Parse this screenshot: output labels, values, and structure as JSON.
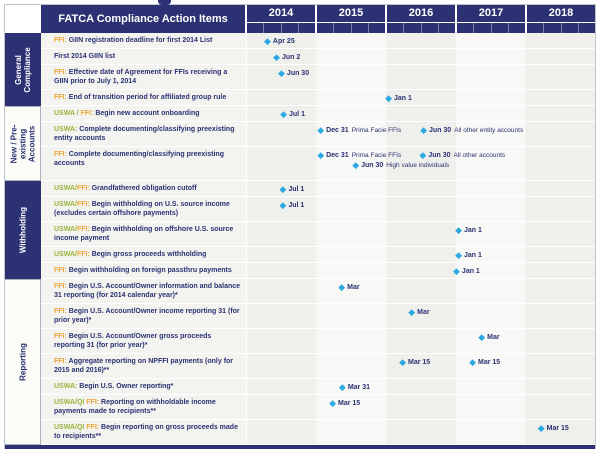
{
  "colors": {
    "navy": "#2b3173",
    "cyan_diamond": "#2ca9e0",
    "ffi_orange": "#eda437",
    "uswa_green": "#98b43c",
    "row_grey": "#efefeb"
  },
  "chart_data": {
    "type": "timeline",
    "title": "FATCA Compliance Action Items",
    "x_axis": {
      "years": [
        "2014",
        "2015",
        "2016",
        "2017",
        "2018"
      ],
      "ticks_per_year": 4
    },
    "legend": {
      "marker": "diamond",
      "marker_meaning": "milestone date"
    },
    "sections": [
      {
        "label": "General Compliance",
        "label_display": "General\nCompliance",
        "theme": "dark",
        "rows": [
          {
            "prefix": [
              {
                "text": "FFI:",
                "color": "orange"
              }
            ],
            "text": "GIIN registration deadline for first 2014 List",
            "lines": 1,
            "milestones": [
              {
                "date": "Apr 25",
                "year": 2014,
                "t": 0.3
              }
            ]
          },
          {
            "prefix": [],
            "text": "First 2014 GIIN list",
            "lines": 1,
            "milestones": [
              {
                "date": "Jun 2",
                "year": 2014,
                "t": 0.43
              }
            ]
          },
          {
            "prefix": [
              {
                "text": "FFI:",
                "color": "orange"
              }
            ],
            "text": "Effective date of Agreement for FFIs receiving a GIIN prior to July 1, 2014",
            "lines": 2,
            "milestones": [
              {
                "date": "Jun 30",
                "year": 2014,
                "t": 0.5
              }
            ]
          },
          {
            "prefix": [
              {
                "text": "FFI:",
                "color": "orange"
              }
            ],
            "text": "End of transition period for affiliated group rule",
            "lines": 1,
            "milestones": [
              {
                "date": "Jan 1",
                "year": 2016,
                "t": 2.03
              }
            ]
          }
        ]
      },
      {
        "label": "New / Pre-existing Accounts",
        "label_display": "New / Pre-\nexisting\nAccounts",
        "theme": "light",
        "rows": [
          {
            "prefix": [
              {
                "text": "USWA / ",
                "color": "green"
              },
              {
                "text": "FFI:",
                "color": "orange"
              }
            ],
            "text": "Begin new account onboarding",
            "lines": 1,
            "milestones": [
              {
                "date": "Jul 1",
                "year": 2014,
                "t": 0.53
              }
            ]
          },
          {
            "prefix": [
              {
                "text": "USWA:",
                "color": "green"
              }
            ],
            "text": "Complete documenting/classifying preexisting entity accounts",
            "lines": 2,
            "milestones": [
              {
                "date": "Dec 31",
                "year": 2014,
                "t": 1.06,
                "note": "Prima Facie FFIs"
              },
              {
                "date": "Jun 30",
                "year": 2016,
                "t": 2.53,
                "note": "All other entity accounts"
              }
            ]
          },
          {
            "prefix": [
              {
                "text": "FFI:",
                "color": "orange"
              }
            ],
            "text": "Complete documenting/classifying preexisting accounts",
            "lines": 2,
            "milestones": [
              {
                "date": "Dec 31",
                "year": 2014,
                "t": 1.06,
                "note": "Prima Facie FFIs"
              },
              {
                "date": "Jun 30",
                "year": 2016,
                "t": 2.52,
                "note": "All other accounts"
              },
              {
                "date": "Jun 30",
                "year": 2015,
                "t": 1.56,
                "note": "High value individuals",
                "line": 1
              }
            ]
          }
        ]
      },
      {
        "label": "Withholding",
        "label_display": "Withholding",
        "theme": "dark",
        "rows": [
          {
            "prefix": [
              {
                "text": "USWA/",
                "color": "green"
              },
              {
                "text": "FFI:",
                "color": "orange"
              }
            ],
            "text": "Grandfathered obligation cutoff",
            "lines": 1,
            "milestones": [
              {
                "date": "Jul 1",
                "year": 2014,
                "t": 0.52
              }
            ]
          },
          {
            "prefix": [
              {
                "text": "USWA/",
                "color": "green"
              },
              {
                "text": "FFI:",
                "color": "orange"
              }
            ],
            "text": "Begin withholding on U.S. source income (excludes certain offshore payments)",
            "lines": 2,
            "milestones": [
              {
                "date": "Jul 1",
                "year": 2014,
                "t": 0.52
              }
            ]
          },
          {
            "prefix": [
              {
                "text": "USWA/",
                "color": "green"
              },
              {
                "text": "FFI:",
                "color": "orange"
              }
            ],
            "text": "Begin withholding on offshore U.S. source income payment",
            "lines": 2,
            "milestones": [
              {
                "date": "Jan 1",
                "year": 2017,
                "t": 3.03
              }
            ]
          },
          {
            "prefix": [
              {
                "text": "USWA/",
                "color": "green"
              },
              {
                "text": "FFI:",
                "color": "orange"
              }
            ],
            "text": "Begin gross proceeds withholding",
            "lines": 1,
            "milestones": [
              {
                "date": "Jan 1",
                "year": 2017,
                "t": 3.03
              }
            ]
          },
          {
            "prefix": [
              {
                "text": "FFI:",
                "color": "orange"
              }
            ],
            "text": "Begin withholding on foreign passthru payments",
            "lines": 1,
            "milestones": [
              {
                "date": "Jan 1",
                "year": 2017,
                "t": 3.0
              }
            ]
          }
        ]
      },
      {
        "label": "Reporting",
        "label_display": "Reporting",
        "theme": "light",
        "rows": [
          {
            "prefix": [
              {
                "text": "FFI:",
                "color": "orange"
              }
            ],
            "text": "Begin U.S. Account/Owner information and balance 31 reporting (for 2014 calendar year)*",
            "lines": 2,
            "milestones": [
              {
                "date": "Mar",
                "year": 2015,
                "t": 1.36
              }
            ]
          },
          {
            "prefix": [
              {
                "text": "FFI:",
                "color": "orange"
              }
            ],
            "text": "Begin U.S. Account/Owner income reporting 31 (for prior year)*",
            "lines": 2,
            "milestones": [
              {
                "date": "Mar",
                "year": 2016,
                "t": 2.36
              }
            ]
          },
          {
            "prefix": [
              {
                "text": "FFI:",
                "color": "orange"
              }
            ],
            "text": "Begin U.S. Account/Owner gross proceeds reporting 31 (for prior year)*",
            "lines": 2,
            "milestones": [
              {
                "date": "Mar",
                "year": 2017,
                "t": 3.36
              }
            ]
          },
          {
            "prefix": [
              {
                "text": "FFI:",
                "color": "orange"
              }
            ],
            "text": "Aggregate reporting on NPFFI payments (only for 2015 and 2016)**",
            "lines": 2,
            "milestones": [
              {
                "date": "Mar 15",
                "year": 2016,
                "t": 2.23
              },
              {
                "date": "Mar 15",
                "year": 2017,
                "t": 3.23
              }
            ]
          },
          {
            "prefix": [
              {
                "text": "USWA:",
                "color": "green"
              }
            ],
            "text": "Begin U.S. Owner reporting*",
            "lines": 1,
            "milestones": [
              {
                "date": "Mar 31",
                "year": 2015,
                "t": 1.37
              }
            ]
          },
          {
            "prefix": [
              {
                "text": "USWA/QI ",
                "color": "green"
              },
              {
                "text": "FFI:",
                "color": "orange"
              }
            ],
            "text": "Reporting on withholdable income payments made to recipients**",
            "lines": 2,
            "milestones": [
              {
                "date": "Mar 15",
                "year": 2015,
                "t": 1.23
              }
            ]
          },
          {
            "prefix": [
              {
                "text": "USWA/QI ",
                "color": "green"
              },
              {
                "text": "FFI:",
                "color": "orange"
              }
            ],
            "text": "Begin reporting on gross proceeds made to recipients**",
            "lines": 2,
            "milestones": [
              {
                "date": "Mar 15",
                "year": 2018,
                "t": 4.21
              }
            ]
          }
        ]
      }
    ]
  }
}
